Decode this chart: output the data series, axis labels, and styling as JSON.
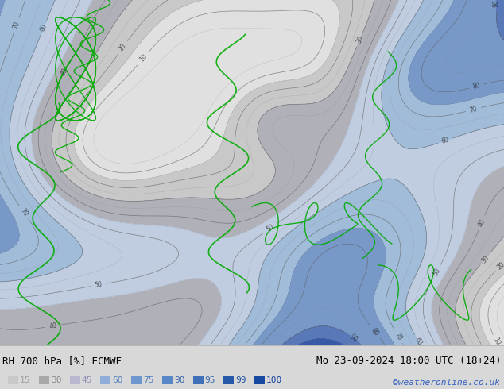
{
  "title_left": "RH 700 hPa [%] ECMWF",
  "title_right": "Mo 23-09-2024 18:00 UTC (18+24)",
  "credit": "©weatheronline.co.uk",
  "legend_values": [
    "15",
    "30",
    "45",
    "60",
    "75",
    "90",
    "95",
    "99",
    "100"
  ],
  "legend_colors": [
    "#c8c8c8",
    "#a8a8a8",
    "#b8b8d0",
    "#90acd8",
    "#7098d0",
    "#5888c8",
    "#4070b8",
    "#2858a8",
    "#1848a0"
  ],
  "legend_text_colors": [
    "#a0a0a0",
    "#888888",
    "#9090b8",
    "#5080c0",
    "#5080c0",
    "#3868b0",
    "#3868b0",
    "#2050a0",
    "#1040a0"
  ],
  "bg_color": "#d8d8d8",
  "map_colors": {
    "dry_low": "#c8c8c8",
    "dry_mid": "#b0b0b8",
    "moist_low": "#b8c8e0",
    "moist_mid": "#90b0d8",
    "moist_high": "#6890c8",
    "moist_vhigh": "#4068b0",
    "sea_color": "#a8c4e0",
    "land_gray": "#b8b8b8"
  },
  "figwidth": 6.34,
  "figheight": 4.9,
  "dpi": 100
}
